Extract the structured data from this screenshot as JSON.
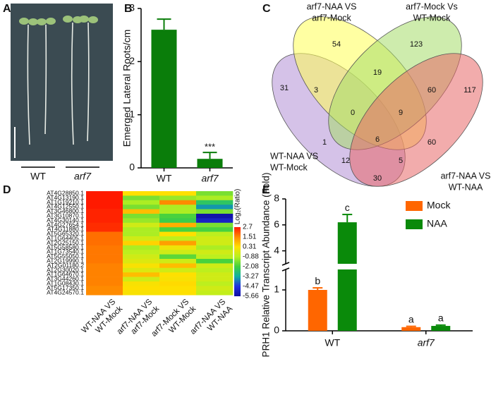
{
  "panel_labels": [
    "A",
    "B",
    "C",
    "D",
    "E"
  ],
  "photo": {
    "labels": [
      "WT",
      "arf7"
    ]
  },
  "chart_data": [
    {
      "type": "bar",
      "ylabel": "Emerged Lateral Roots/cm",
      "categories": [
        "WT",
        "arf7"
      ],
      "values": [
        2.6,
        0.17
      ],
      "errors": [
        0.2,
        0.12
      ],
      "annotations": [
        null,
        "***"
      ],
      "color": "#0a7d0a",
      "ylim": [
        0,
        3
      ],
      "yticks": [
        0,
        1,
        2,
        3
      ]
    },
    {
      "type": "venn",
      "sets": [
        {
          "name": [
            "WT-NAA VS",
            "WT-Mock"
          ],
          "color": "#b28fd6"
        },
        {
          "name": [
            "arf7-NAA VS",
            "arf7-Mock"
          ],
          "color": "#ffff55"
        },
        {
          "name": [
            "arf7-Mock Vs",
            "WT-Mock"
          ],
          "color": "#a6dc6a"
        },
        {
          "name": [
            "arf7-NAA VS",
            "WT-NAA"
          ],
          "color": "#e86868"
        }
      ],
      "values": [
        54,
        123,
        31,
        3,
        19,
        60,
        117,
        0,
        9,
        1,
        6,
        60,
        12,
        5,
        30
      ]
    },
    {
      "type": "heatmap",
      "rows": [
        "AT4G28850.1",
        "AT4G13190.1",
        "AT1G19210.1",
        "AT4G12550.1",
        "AT3G46800.1",
        "AT3G10870.1",
        "AT4G30140.1",
        "AT4G27654.1",
        "AT4G11880.1",
        "AT5G65320.1",
        "AT1G64405.1",
        "AT2G25150.1",
        "AT5G58580.1",
        "AT1G73540.1",
        "AT5G55050.1",
        "AT2G19990.1",
        "AT2G01180.2",
        "AT2G30020.1",
        "AT1G64670.1",
        "AT3G44260.1",
        "AT1G08430.1",
        "AT5G17350.1",
        "AT4G24570.1"
      ],
      "columns": [
        [
          "WT-NAA VS",
          "WT-Mock"
        ],
        [
          "arf7-NAA VS",
          "arf7-Mock"
        ],
        [
          "arf7-Mock VS",
          "WT-Mock"
        ],
        [
          "arf7-NAA VS",
          "WT-NAA"
        ]
      ],
      "values": [
        [
          2.7,
          0.3,
          0.3,
          -1.5
        ],
        [
          2.7,
          -1.5,
          -1.2,
          -1.0
        ],
        [
          2.7,
          -1.0,
          1.5,
          -2.5
        ],
        [
          2.7,
          -1.5,
          -1.0,
          -3.5
        ],
        [
          2.6,
          0.8,
          -1.0,
          -1.5
        ],
        [
          2.6,
          -1.5,
          -2.0,
          -5.5
        ],
        [
          2.6,
          -1.2,
          -2.2,
          -5.0
        ],
        [
          2.5,
          -0.5,
          1.0,
          -1.5
        ],
        [
          2.5,
          -1.0,
          -2.0,
          -2.0
        ],
        [
          1.8,
          -1.0,
          0.3,
          -0.8
        ],
        [
          1.8,
          -0.5,
          -0.8,
          -0.5
        ],
        [
          1.8,
          0.5,
          1.2,
          -0.5
        ],
        [
          1.7,
          -1.0,
          0.0,
          -1.0
        ],
        [
          1.7,
          -0.8,
          -0.5,
          -0.5
        ],
        [
          1.7,
          -0.5,
          -1.8,
          -0.8
        ],
        [
          1.7,
          -0.3,
          -0.5,
          -2.0
        ],
        [
          1.6,
          0.2,
          0.8,
          -0.5
        ],
        [
          1.6,
          -0.3,
          -0.5,
          -0.8
        ],
        [
          1.6,
          0.8,
          0.3,
          -0.5
        ],
        [
          1.6,
          -0.5,
          0.2,
          -0.5
        ],
        [
          1.6,
          0.2,
          0.4,
          -0.8
        ],
        [
          1.5,
          0.3,
          0.3,
          -0.5
        ],
        [
          1.5,
          0.2,
          0.3,
          -0.7
        ]
      ],
      "colorbar": {
        "label": "Log₂(Ratio)",
        "ticks": [
          2.7,
          1.51,
          0.31,
          -0.88,
          -2.08,
          -3.27,
          -4.47,
          -5.66
        ],
        "colors": [
          "#ff1a00",
          "#ff8a00",
          "#ffe000",
          "#b8f020",
          "#40d040",
          "#10b0a0",
          "#2030e0",
          "#1010a0"
        ]
      }
    },
    {
      "type": "grouped_bar",
      "ylabel": "PRH1 Relative Transcript Abundance (Fold)",
      "categories": [
        "WT",
        "arf7"
      ],
      "series": [
        {
          "name": "Mock",
          "color": "#ff6600",
          "values": [
            1.0,
            0.09
          ],
          "errors": [
            0.05,
            0.02
          ],
          "annotations": [
            "b",
            "a"
          ]
        },
        {
          "name": "NAA",
          "color": "#0a8a0a",
          "values": [
            6.2,
            0.12
          ],
          "errors": [
            0.6,
            0.02
          ],
          "annotations": [
            "c",
            "a"
          ]
        }
      ],
      "ylim": [
        0,
        8
      ],
      "yticks": [
        0,
        1,
        4,
        6,
        8
      ],
      "ybreak": [
        1.5,
        3
      ],
      "legend": "upper right"
    }
  ]
}
